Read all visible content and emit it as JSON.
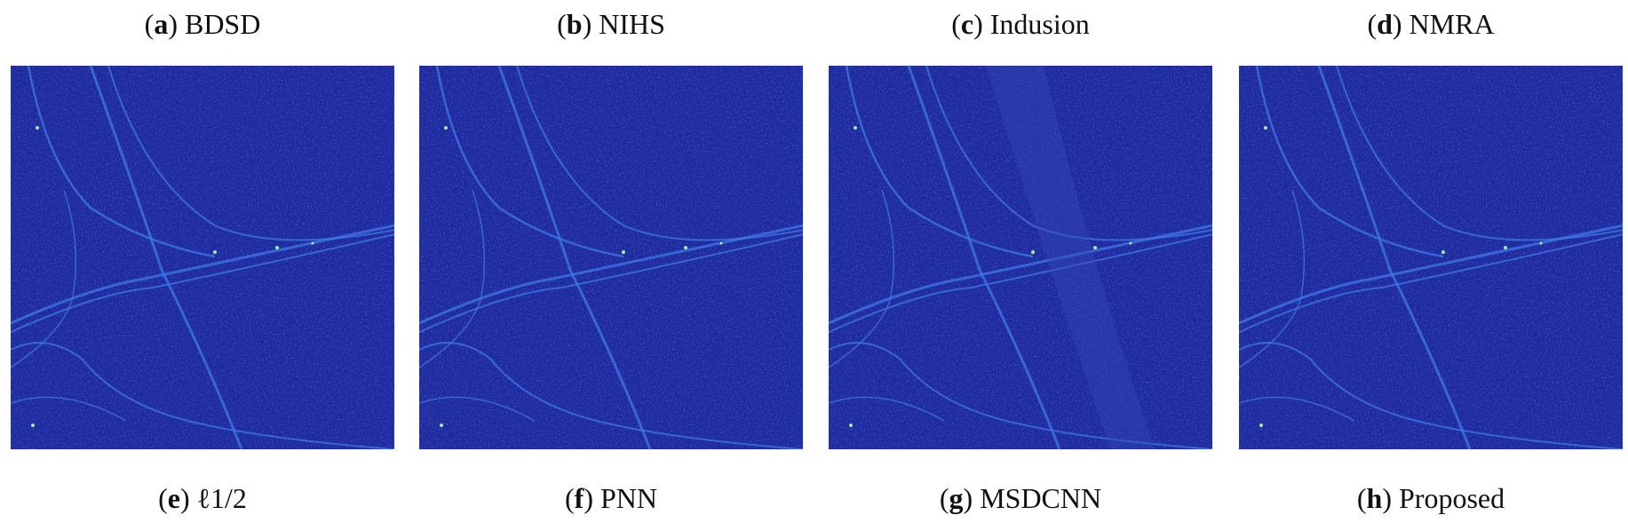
{
  "brackets": [
    "(",
    ")"
  ],
  "top_labels": [
    {
      "letter": "a",
      "name": "BDSD"
    },
    {
      "letter": "b",
      "name": "NIHS"
    },
    {
      "letter": "c",
      "name": "Indusion"
    },
    {
      "letter": "d",
      "name": "NMRA"
    }
  ],
  "bottom_labels": [
    {
      "letter": "e",
      "name": "ℓ1/2"
    },
    {
      "letter": "f",
      "name": "PNN"
    },
    {
      "letter": "g",
      "name": "MSDCNN"
    },
    {
      "letter": "h",
      "name": "Proposed"
    }
  ]
}
